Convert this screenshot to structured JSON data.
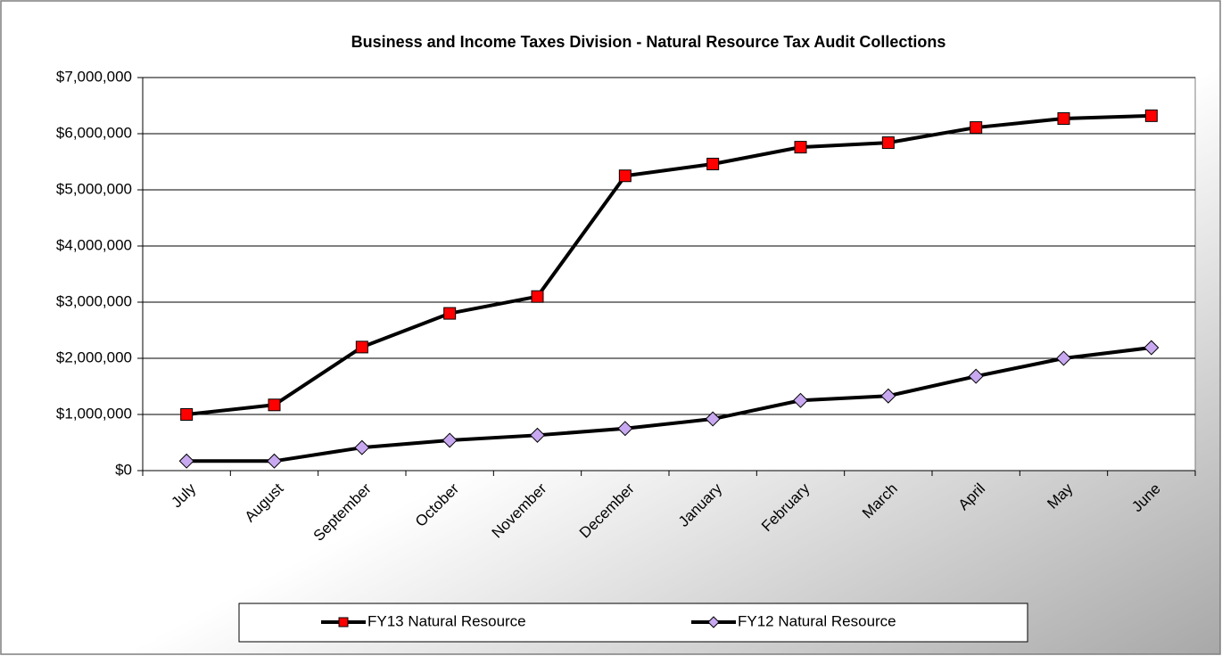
{
  "chart_data": {
    "type": "line",
    "title": "Business and Income Taxes Division - Natural Resource Tax Audit Collections",
    "categories": [
      "July",
      "August",
      "September",
      "October",
      "November",
      "December",
      "January",
      "February",
      "March",
      "April",
      "May",
      "June"
    ],
    "series": [
      {
        "name": "FY13 Natural Resource",
        "color": "#000000",
        "marker": "square",
        "marker_color": "#ff0000",
        "values": [
          1000000,
          1170000,
          2200000,
          2800000,
          3100000,
          5250000,
          5460000,
          5760000,
          5840000,
          6110000,
          6270000,
          6320000
        ]
      },
      {
        "name": "FY12 Natural Resource",
        "color": "#000000",
        "marker": "diamond",
        "marker_color": "#c8a8f0",
        "values": [
          170000,
          170000,
          410000,
          540000,
          630000,
          750000,
          920000,
          1250000,
          1330000,
          1680000,
          2000000,
          2190000
        ]
      }
    ],
    "ylim": [
      0,
      7000000
    ],
    "yticks": [
      {
        "value": 0,
        "label": "$0"
      },
      {
        "value": 1000000,
        "label": "$1,000,000"
      },
      {
        "value": 2000000,
        "label": "$2,000,000"
      },
      {
        "value": 3000000,
        "label": "$3,000,000"
      },
      {
        "value": 4000000,
        "label": "$4,000,000"
      },
      {
        "value": 5000000,
        "label": "$5,000,000"
      },
      {
        "value": 6000000,
        "label": "$6,000,000"
      },
      {
        "value": 7000000,
        "label": "$7,000,000"
      }
    ],
    "grid": true,
    "legend": "bottom"
  }
}
